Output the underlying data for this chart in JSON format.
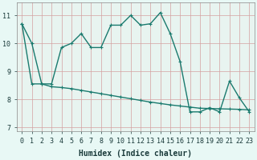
{
  "title": "",
  "xlabel": "Humidex (Indice chaleur)",
  "background_color": "#e8f8f5",
  "plot_bg_color": "#e8f4f0",
  "line_color": "#1a7a6e",
  "grid_color": "#d4a0a0",
  "xlim": [
    -0.5,
    23.5
  ],
  "ylim": [
    6.85,
    11.45
  ],
  "yticks": [
    7,
    8,
    9,
    10,
    11
  ],
  "xticks": [
    0,
    1,
    2,
    3,
    4,
    5,
    6,
    7,
    8,
    9,
    10,
    11,
    12,
    13,
    14,
    15,
    16,
    17,
    18,
    19,
    20,
    21,
    22,
    23
  ],
  "curve1_x": [
    0,
    1,
    2,
    3,
    4,
    5,
    6,
    7,
    8,
    9,
    10,
    11,
    12,
    13,
    14,
    15,
    16,
    17,
    18,
    19,
    20,
    21,
    22,
    23
  ],
  "curve1_y": [
    10.7,
    10.0,
    8.55,
    8.55,
    9.85,
    10.0,
    10.35,
    9.85,
    9.85,
    10.65,
    10.65,
    11.0,
    10.65,
    10.7,
    11.1,
    10.35,
    9.35,
    7.55,
    7.55,
    7.7,
    7.55,
    8.65,
    8.05,
    7.55
  ],
  "curve2_x": [
    0,
    1,
    2,
    3,
    4,
    5,
    6,
    7,
    8,
    9,
    10,
    11,
    12,
    13,
    14,
    15,
    16,
    17,
    18,
    19,
    20,
    21,
    22,
    23
  ],
  "curve2_y": [
    10.7,
    8.55,
    8.55,
    8.45,
    8.42,
    8.38,
    8.32,
    8.26,
    8.2,
    8.14,
    8.08,
    8.02,
    7.96,
    7.9,
    7.85,
    7.8,
    7.76,
    7.72,
    7.68,
    7.67,
    7.66,
    7.65,
    7.64,
    7.62
  ],
  "markersize": 2.5,
  "linewidth": 1.0,
  "xlabel_fontsize": 7,
  "tick_fontsize": 6
}
